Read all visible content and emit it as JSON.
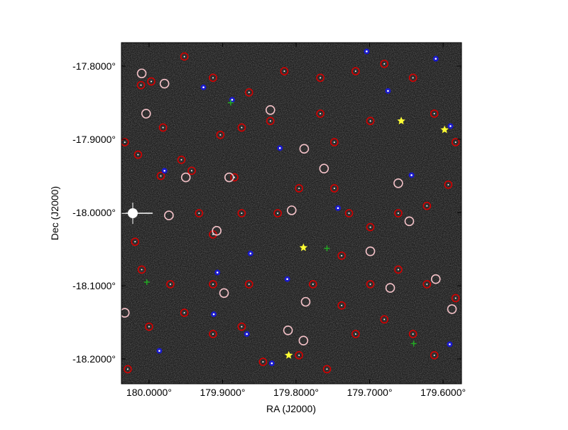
{
  "chart_data": {
    "type": "scatter",
    "xlabel": "RA (J2000)",
    "ylabel": "Dec (J2000)",
    "xlim": [
      180.0376,
      179.575
    ],
    "ylim": [
      -18.234,
      -17.768
    ],
    "xticks": [
      {
        "value": 180.0,
        "label": "180.0000°"
      },
      {
        "value": 179.9,
        "label": "179.9000°"
      },
      {
        "value": 179.8,
        "label": "179.8000°"
      },
      {
        "value": 179.7,
        "label": "179.7000°"
      },
      {
        "value": 179.6,
        "label": "179.6000°"
      }
    ],
    "yticks": [
      {
        "value": -17.8,
        "label": "-17.8000°"
      },
      {
        "value": -17.9,
        "label": "-17.9000°"
      },
      {
        "value": -18.0,
        "label": "-18.0000°"
      },
      {
        "value": -18.1,
        "label": "-18.1000°"
      },
      {
        "value": -18.2,
        "label": "-18.2000°"
      }
    ],
    "series": [
      {
        "color": "#d40000",
        "marker": "ring",
        "x": [
          180.011,
          179.997,
          180.033,
          180.015,
          179.984,
          179.956,
          179.942,
          179.903,
          179.884,
          179.932,
          179.913,
          179.874,
          179.825,
          179.796,
          179.748,
          179.728,
          179.699,
          179.661,
          179.622,
          179.593,
          179.583,
          179.612,
          179.641,
          179.68,
          179.719,
          179.767,
          179.816,
          179.864,
          179.913,
          179.952,
          179.981,
          180.019,
          180.01,
          179.971,
          179.952,
          179.913,
          179.874,
          179.845,
          179.796,
          179.758,
          179.719,
          179.68,
          179.641,
          179.612,
          179.583,
          179.622,
          179.661,
          179.699,
          179.738,
          179.777,
          179.864,
          179.913,
          180.0,
          180.029,
          179.748,
          179.835,
          179.699,
          179.767,
          179.874,
          179.738
        ],
        "y": [
          -17.826,
          -17.821,
          -17.904,
          -17.921,
          -17.95,
          -17.928,
          -17.943,
          -17.894,
          -17.952,
          -18.001,
          -18.03,
          -18.001,
          -18.001,
          -17.967,
          -17.967,
          -18.001,
          -18.02,
          -18.001,
          -17.991,
          -17.962,
          -17.904,
          -17.865,
          -17.816,
          -17.797,
          -17.807,
          -17.816,
          -17.807,
          -17.836,
          -17.816,
          -17.787,
          -17.884,
          -18.04,
          -18.078,
          -18.098,
          -18.137,
          -18.166,
          -18.156,
          -18.204,
          -18.195,
          -18.214,
          -18.166,
          -18.146,
          -18.166,
          -18.195,
          -18.117,
          -18.098,
          -18.078,
          -18.098,
          -18.127,
          -18.098,
          -18.098,
          -18.098,
          -18.156,
          -18.214,
          -17.904,
          -17.875,
          -17.875,
          -17.865,
          -17.884,
          -18.059
        ]
      },
      {
        "color": "#f4c2c8",
        "marker": "open-circle",
        "x": [
          180.01,
          179.979,
          180.004,
          179.973,
          179.95,
          179.908,
          179.891,
          179.898,
          179.835,
          179.789,
          179.762,
          179.806,
          179.787,
          179.699,
          179.672,
          179.646,
          179.61,
          179.588,
          179.79,
          179.811,
          180.033,
          179.661
        ],
        "y": [
          -17.81,
          -17.824,
          -17.865,
          -18.004,
          -17.952,
          -18.025,
          -17.952,
          -18.11,
          -17.86,
          -17.913,
          -17.94,
          -17.997,
          -18.122,
          -18.053,
          -18.103,
          -18.012,
          -18.091,
          -18.132,
          -18.175,
          -18.161,
          -18.137,
          -17.96
        ]
      },
      {
        "color": "#1a1acc",
        "marker": "dot",
        "x": [
          179.926,
          179.887,
          179.822,
          179.979,
          179.743,
          179.675,
          179.61,
          179.59,
          179.643,
          179.862,
          179.907,
          179.812,
          179.912,
          179.867,
          179.986,
          179.833,
          179.591,
          179.704
        ],
        "y": [
          -17.829,
          -17.846,
          -17.912,
          -17.943,
          -17.994,
          -17.834,
          -17.79,
          -17.882,
          -17.949,
          -18.056,
          -18.082,
          -18.091,
          -18.139,
          -18.166,
          -18.189,
          -18.206,
          -18.18,
          -17.78
        ]
      },
      {
        "color": "#ffff33",
        "marker": "star",
        "x": [
          179.657,
          179.598,
          179.79,
          179.81
        ],
        "y": [
          -17.875,
          -17.887,
          -18.048,
          -18.195
        ]
      },
      {
        "color": "#22aa22",
        "marker": "plus",
        "x": [
          179.889,
          180.003,
          179.64,
          179.758
        ],
        "y": [
          -17.85,
          -18.095,
          -18.179,
          -18.049
        ]
      }
    ]
  }
}
